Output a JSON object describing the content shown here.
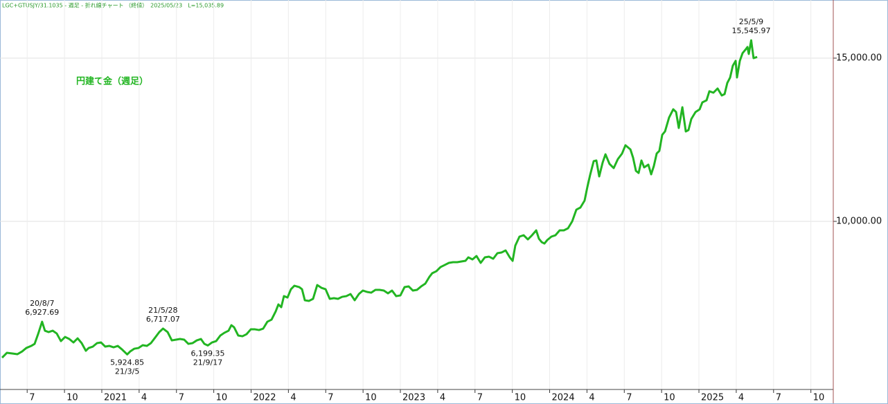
{
  "chart_data": {
    "type": "line",
    "header": "LGC+GTUSJY/31.1035 - 週足 - 折れ線チャート （終値）　2025/05/23　L=15,035.89",
    "xlim": [
      2020.318,
      2025.9
    ],
    "ylim": [
      4852,
      16780
    ],
    "xticks": [
      {
        "value": 2020.5,
        "label": "7"
      },
      {
        "value": 2020.75,
        "label": "10"
      },
      2021,
      {
        "value": 2021.25,
        "label": "4"
      },
      {
        "value": 2021.5,
        "label": "7"
      },
      {
        "value": 2021.75,
        "label": "10"
      },
      2022,
      {
        "value": 2022.25,
        "label": "4"
      },
      {
        "value": 2022.5,
        "label": "7"
      },
      {
        "value": 2022.75,
        "label": "10"
      },
      2023,
      {
        "value": 2023.25,
        "label": "4"
      },
      {
        "value": 2023.5,
        "label": "7"
      },
      {
        "value": 2023.75,
        "label": "10"
      },
      2024,
      {
        "value": 2024.25,
        "label": "4"
      },
      {
        "value": 2024.5,
        "label": "7"
      },
      {
        "value": 2024.75,
        "label": "10"
      },
      2025,
      {
        "value": 2025.25,
        "label": "4"
      },
      {
        "value": 2025.5,
        "label": "7"
      },
      {
        "value": 2025.75,
        "label": "10"
      }
    ],
    "yticks": [
      {
        "value": 10000,
        "label": "10,000.00"
      },
      {
        "value": 15000,
        "label": "15,000.00"
      }
    ],
    "grid": true,
    "series": [
      {
        "name": "円建て金（週足）",
        "color": "#22b522",
        "x": [
          2020.332,
          2020.364,
          2020.401,
          2020.434,
          2020.466,
          2020.494,
          2020.527,
          2020.55,
          2020.573,
          2020.6,
          2020.619,
          2020.643,
          2020.671,
          2020.698,
          2020.726,
          2020.754,
          2020.782,
          2020.81,
          2020.838,
          2020.865,
          2020.893,
          2020.912,
          2020.94,
          2020.968,
          2020.995,
          2021.023,
          2021.051,
          2021.079,
          2021.107,
          2021.135,
          2021.17,
          2021.19,
          2021.218,
          2021.246,
          2021.274,
          2021.302,
          2021.329,
          2021.357,
          2021.385,
          2021.41,
          2021.441,
          2021.469,
          2021.497,
          2021.524,
          2021.552,
          2021.58,
          2021.608,
          2021.636,
          2021.664,
          2021.687,
          2021.71,
          2021.738,
          2021.766,
          2021.794,
          2021.821,
          2021.849,
          2021.868,
          2021.886,
          2021.914,
          2021.942,
          2021.97,
          2021.998,
          2022.026,
          2022.053,
          2022.081,
          2022.109,
          2022.137,
          2022.165,
          2022.183,
          2022.202,
          2022.22,
          2022.244,
          2022.267,
          2022.29,
          2022.323,
          2022.341,
          2022.36,
          2022.387,
          2022.415,
          2022.443,
          2022.471,
          2022.499,
          2022.527,
          2022.555,
          2022.582,
          2022.61,
          2022.638,
          2022.666,
          2022.694,
          2022.722,
          2022.749,
          2022.777,
          2022.805,
          2022.833,
          2022.861,
          2022.889,
          2022.917,
          2022.944,
          2022.972,
          2023.0,
          2023.028,
          2023.056,
          2023.084,
          2023.111,
          2023.139,
          2023.167,
          2023.195,
          2023.213,
          2023.241,
          2023.269,
          2023.297,
          2023.325,
          2023.353,
          2023.381,
          2023.408,
          2023.436,
          2023.455,
          2023.483,
          2023.51,
          2023.538,
          2023.566,
          2023.594,
          2023.622,
          2023.65,
          2023.677,
          2023.705,
          2023.733,
          2023.752,
          2023.77,
          2023.798,
          2023.826,
          2023.854,
          2023.882,
          2023.91,
          2023.928,
          2023.947,
          2023.965,
          2023.984,
          2024.012,
          2024.039,
          2024.067,
          2024.095,
          2024.123,
          2024.151,
          2024.179,
          2024.206,
          2024.234,
          2024.253,
          2024.271,
          2024.295,
          2024.313,
          2024.332,
          2024.355,
          2024.374,
          2024.401,
          2024.429,
          2024.457,
          2024.485,
          2024.508,
          2024.541,
          2024.559,
          2024.578,
          2024.596,
          2024.615,
          2024.633,
          2024.661,
          2024.68,
          2024.698,
          2024.717,
          2024.735,
          2024.754,
          2024.773,
          2024.8,
          2024.828,
          2024.847,
          2024.865,
          2024.889,
          2024.912,
          2024.93,
          2024.949,
          2024.977,
          2025.005,
          2025.023,
          2025.051,
          2025.07,
          2025.097,
          2025.125,
          2025.153,
          2025.172,
          2025.19,
          2025.209,
          2025.227,
          2025.246,
          2025.255,
          2025.274,
          2025.292,
          2025.311,
          2025.325,
          2025.334,
          2025.35,
          2025.366,
          2025.39
        ],
        "values": [
          5826,
          5974,
          5953,
          5932,
          6016,
          6122,
          6186,
          6249,
          6546,
          6927.69,
          6652,
          6610,
          6652,
          6567,
          6334,
          6461,
          6398,
          6292,
          6419,
          6271,
          6037,
          6122,
          6165,
          6271,
          6292,
          6165,
          6186,
          6143,
          6186,
          6080,
          5924.85,
          6016,
          6101,
          6122,
          6207,
          6186,
          6271,
          6440,
          6610,
          6717.07,
          6610,
          6355,
          6377,
          6398,
          6377,
          6249,
          6271,
          6355,
          6398,
          6249,
          6199.35,
          6292,
          6334,
          6504,
          6588,
          6652,
          6821,
          6758,
          6504,
          6482,
          6546,
          6694,
          6694,
          6673,
          6716,
          6927,
          6991,
          7245,
          7457,
          7372,
          7711,
          7669,
          7923,
          8029,
          7987,
          7923,
          7584,
          7563,
          7627,
          8051,
          7966,
          7923,
          7627,
          7648,
          7627,
          7690,
          7711,
          7775,
          7584,
          7775,
          7881,
          7839,
          7817,
          7902,
          7902,
          7881,
          7796,
          7881,
          7711,
          7733,
          7987,
          8008,
          7881,
          7902,
          8008,
          8093,
          8305,
          8411,
          8474,
          8601,
          8665,
          8729,
          8750,
          8750,
          8771,
          8792,
          8898,
          8835,
          8940,
          8729,
          8898,
          8919,
          8856,
          9025,
          9046,
          9110,
          8898,
          8792,
          9258,
          9534,
          9576,
          9449,
          9576,
          9725,
          9470,
          9364,
          9322,
          9428,
          9534,
          9576,
          9725,
          9725,
          9788,
          10000,
          10360,
          10424,
          10636,
          11060,
          11420,
          11844,
          11865,
          11377,
          11801,
          12055,
          11759,
          11632,
          11907,
          12077,
          12331,
          12204,
          11949,
          11547,
          11483,
          11865,
          11653,
          11738,
          11441,
          11695,
          12077,
          12161,
          12649,
          12755,
          13179,
          13433,
          13348,
          12861,
          13496,
          12755,
          12797,
          13136,
          13348,
          13433,
          13645,
          13708,
          13984,
          13941,
          14069,
          13857,
          13899,
          14238,
          14407,
          14768,
          14916,
          14407,
          14916,
          15149,
          15255,
          15340,
          15128,
          15545.97,
          15000,
          15035.89
        ]
      }
    ],
    "annotations": [
      {
        "date": "20/8/7",
        "x": 2020.6,
        "value": 6927.69,
        "value_label": "6,927.69",
        "position": "above"
      },
      {
        "date": "21/3/5",
        "x": 2021.17,
        "value": 5924.85,
        "value_label": "5,924.85",
        "position": "below"
      },
      {
        "date": "21/5/28",
        "x": 2021.41,
        "value": 6717.07,
        "value_label": "6,717.07",
        "position": "above"
      },
      {
        "date": "21/9/17",
        "x": 2021.71,
        "value": 6199.35,
        "value_label": "6,199.35",
        "position": "below"
      },
      {
        "date": "25/5/9",
        "x": 2025.35,
        "value": 15545.97,
        "value_label": "15,545.97",
        "position": "above"
      }
    ]
  }
}
